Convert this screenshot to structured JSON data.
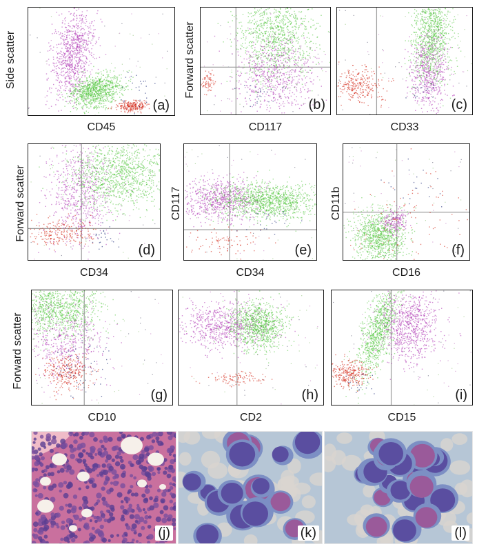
{
  "colors": {
    "green": "#4fc43a",
    "magenta": "#b23fb8",
    "red": "#d42a1a",
    "navy": "#1d2a78",
    "gate": "#9c9c9c",
    "he_bg": "#c9709e",
    "wright_bg": "#b6c6d6"
  },
  "chart_data": [
    {
      "id": "a",
      "type": "scatter",
      "panel_label": "(a)",
      "xlabel": "CD45",
      "ylabel": "Side scatter",
      "x_scale": "log",
      "grid": false,
      "populations": [
        {
          "color": "magenta",
          "shape": "elongated cloud, upper left",
          "relative_size": "large"
        },
        {
          "color": "green",
          "shape": "compact cluster, lower middle",
          "relative_size": "large"
        },
        {
          "color": "red",
          "shape": "small cluster, lower right",
          "relative_size": "small"
        },
        {
          "color": "navy",
          "shape": "sparse events, lower right",
          "relative_size": "small"
        }
      ]
    },
    {
      "id": "b",
      "type": "scatter",
      "panel_label": "(b)",
      "xlabel": "CD117",
      "ylabel": "Forward scatter",
      "x_scale": "log",
      "quadrant_gates": true,
      "populations": [
        {
          "color": "green",
          "shape": "dense upper right cluster",
          "relative_size": "large"
        },
        {
          "color": "magenta",
          "shape": "tail below green cluster",
          "relative_size": "medium"
        },
        {
          "color": "red",
          "shape": "small cluster, left middle",
          "relative_size": "small"
        }
      ]
    },
    {
      "id": "c",
      "type": "scatter",
      "panel_label": "(c)",
      "xlabel": "CD33",
      "ylabel": "",
      "x_scale": "log",
      "quadrant_gates": true,
      "populations": [
        {
          "color": "green",
          "shape": "dense upper right cluster",
          "relative_size": "large"
        },
        {
          "color": "magenta",
          "shape": "tail below green cluster",
          "relative_size": "medium"
        },
        {
          "color": "red",
          "shape": "cluster, lower left",
          "relative_size": "medium"
        }
      ]
    },
    {
      "id": "d",
      "type": "scatter",
      "panel_label": "(d)",
      "xlabel": "CD34",
      "ylabel": "Forward scatter",
      "x_scale": "log",
      "quadrant_gates": true,
      "populations": [
        {
          "color": "green",
          "shape": "dense upper right cluster",
          "relative_size": "large"
        },
        {
          "color": "magenta",
          "shape": "spread left of green",
          "relative_size": "large"
        },
        {
          "color": "red",
          "shape": "cluster, lower left",
          "relative_size": "medium"
        }
      ]
    },
    {
      "id": "e",
      "type": "scatter",
      "panel_label": "(e)",
      "xlabel": "CD34",
      "ylabel": "CD117",
      "x_scale": "log",
      "y_scale": "log",
      "quadrant_gates": true,
      "populations": [
        {
          "color": "green",
          "shape": "horizontal band, upper right",
          "relative_size": "large"
        },
        {
          "color": "magenta",
          "shape": "band, upper left",
          "relative_size": "large"
        },
        {
          "color": "red",
          "shape": "sparse events, lower left",
          "relative_size": "small"
        }
      ]
    },
    {
      "id": "f",
      "type": "scatter",
      "panel_label": "(f)",
      "xlabel": "CD16",
      "ylabel": "CD11b",
      "x_scale": "log",
      "y_scale": "log",
      "quadrant_gates": true,
      "populations": [
        {
          "color": "green",
          "shape": "diagonal cluster, lower left",
          "relative_size": "large"
        },
        {
          "color": "magenta",
          "shape": "small cluster at gate crossing",
          "relative_size": "small"
        },
        {
          "color": "red",
          "shape": "sparse diagonal",
          "relative_size": "small"
        }
      ]
    },
    {
      "id": "g",
      "type": "scatter",
      "panel_label": "(g)",
      "xlabel": "CD10",
      "ylabel": "Forward scatter",
      "x_scale": "log",
      "quadrant_gates": true,
      "populations": [
        {
          "color": "green",
          "shape": "dense cluster, upper left",
          "relative_size": "large"
        },
        {
          "color": "magenta",
          "shape": "spread below green",
          "relative_size": "medium"
        },
        {
          "color": "red",
          "shape": "cluster, lower left",
          "relative_size": "medium"
        },
        {
          "color": "navy",
          "shape": "sparse events",
          "relative_size": "small"
        }
      ]
    },
    {
      "id": "h",
      "type": "scatter",
      "panel_label": "(h)",
      "xlabel": "CD2",
      "ylabel": "",
      "x_scale": "log",
      "quadrant_gates": true,
      "populations": [
        {
          "color": "green",
          "shape": "cluster, upper middle",
          "relative_size": "large"
        },
        {
          "color": "magenta",
          "shape": "horizontal band, upper",
          "relative_size": "large"
        },
        {
          "color": "red",
          "shape": "faint cluster, lower middle",
          "relative_size": "small"
        }
      ]
    },
    {
      "id": "i",
      "type": "scatter",
      "panel_label": "(i)",
      "xlabel": "CD15",
      "ylabel": "",
      "x_scale": "log",
      "quadrant_gates": true,
      "populations": [
        {
          "color": "green",
          "shape": "diagonal streak, upper middle",
          "relative_size": "large"
        },
        {
          "color": "magenta",
          "shape": "cluster, upper right",
          "relative_size": "large"
        },
        {
          "color": "red",
          "shape": "cluster, lower left",
          "relative_size": "medium"
        }
      ]
    }
  ],
  "micrographs": [
    {
      "id": "j",
      "panel_label": "(j)",
      "stain": "H&E"
    },
    {
      "id": "k",
      "panel_label": "(k)",
      "stain": "Wright-Giemsa"
    },
    {
      "id": "l",
      "panel_label": "(l)",
      "stain": "Wright-Giemsa"
    }
  ]
}
